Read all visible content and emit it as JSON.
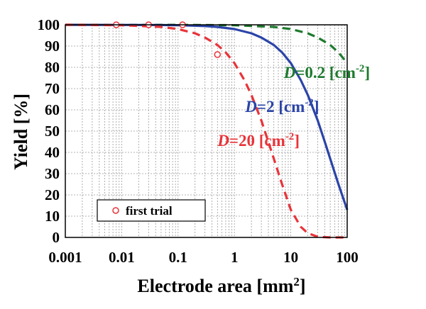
{
  "chart_data": {
    "type": "line",
    "xlabel": "Electrode area [mm",
    "xlabel_sup": "2",
    "xlabel_end": "]",
    "ylabel": "Yield [%]",
    "xscale": "log",
    "xlim": [
      0.001,
      100
    ],
    "ylim": [
      0,
      100
    ],
    "grid": true,
    "x_ticks": [
      0.001,
      0.01,
      0.1,
      1,
      10,
      100
    ],
    "x_tick_labels": [
      "0.001",
      "0.01",
      "0.1",
      "1",
      "10",
      "100"
    ],
    "y_ticks": [
      0,
      10,
      20,
      30,
      40,
      50,
      60,
      70,
      80,
      90,
      100
    ],
    "y_tick_labels": [
      "0",
      "10",
      "20",
      "30",
      "40",
      "50",
      "60",
      "70",
      "80",
      "90",
      "100"
    ],
    "series": [
      {
        "id": "d02",
        "color": "#1e7a2e",
        "style": "dashed",
        "label_var": "D",
        "label_val": "=0.2",
        "label_unit": "[cm",
        "label_sup": "-2",
        "label_end": "]",
        "label_at": [
          7.5,
          75
        ],
        "x": [
          0.001,
          0.1,
          1,
          5,
          10,
          20,
          30,
          50,
          70,
          100
        ],
        "y": [
          100,
          99.98,
          99.8,
          99,
          98,
          96,
          94,
          90.5,
          87,
          82
        ]
      },
      {
        "id": "d2",
        "color": "#2b44a8",
        "style": "solid",
        "label_var": "D",
        "label_val": "=2",
        "label_unit": "[cm",
        "label_sup": "-2",
        "label_end": "]",
        "label_at": [
          1.55,
          59
        ],
        "x": [
          0.001,
          0.05,
          0.1,
          0.3,
          0.5,
          1,
          2,
          3,
          5,
          7,
          10,
          15,
          20,
          30,
          40,
          50,
          70,
          100
        ],
        "y": [
          100,
          99.9,
          99.8,
          99.4,
          99,
          98,
          96,
          94,
          90.5,
          87,
          82,
          74,
          67,
          55,
          45,
          37,
          25,
          13
        ]
      },
      {
        "id": "d20",
        "color": "#e8343a",
        "style": "dashed",
        "label_var": "D",
        "label_val": "=20",
        "label_unit": "[cm",
        "label_sup": "-2",
        "label_end": "]",
        "label_at": [
          0.5,
          43
        ],
        "x": [
          0.001,
          0.01,
          0.05,
          0.1,
          0.2,
          0.3,
          0.5,
          0.7,
          1,
          1.5,
          2,
          3,
          5,
          7,
          10,
          15,
          20,
          30,
          50,
          100
        ],
        "y": [
          100,
          99.8,
          99,
          98,
          96,
          94,
          90.5,
          87,
          82,
          74,
          67,
          55,
          37,
          25,
          13,
          5,
          2,
          0.3,
          0,
          0
        ]
      }
    ],
    "markers": {
      "name": "first trial",
      "color": "#e8343a",
      "x": [
        0.008,
        0.03,
        0.12,
        0.5
      ],
      "y": [
        100,
        100,
        100,
        86
      ]
    },
    "legend": {
      "placement": "bottom-left",
      "label": "first trial"
    }
  }
}
